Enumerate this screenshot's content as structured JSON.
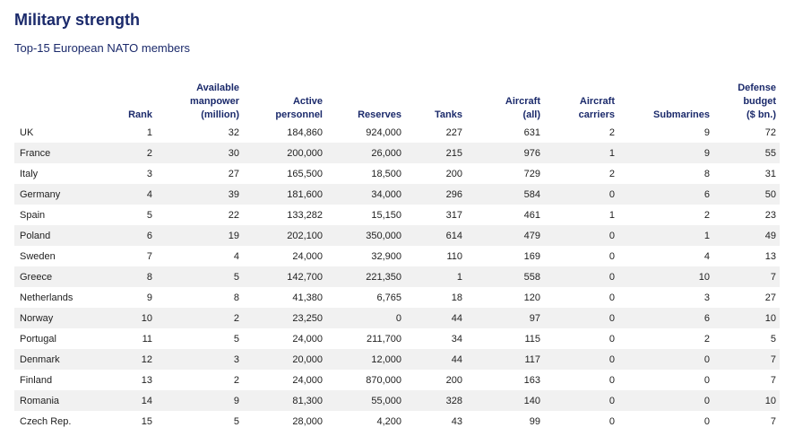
{
  "header": {
    "title": "Military strength",
    "subtitle": "Top-15 European NATO members"
  },
  "table": {
    "columns": [
      "",
      "Rank",
      "Available\nmanpower\n(million)",
      "Active\npersonnel",
      "Reserves",
      "Tanks",
      "Aircraft\n(all)",
      "Aircraft\ncarriers",
      "Submarines",
      "Defense\nbudget\n($ bn.)"
    ],
    "rows": [
      [
        "UK",
        "1",
        "32",
        "184,860",
        "924,000",
        "227",
        "631",
        "2",
        "9",
        "72"
      ],
      [
        "France",
        "2",
        "30",
        "200,000",
        "26,000",
        "215",
        "976",
        "1",
        "9",
        "55"
      ],
      [
        "Italy",
        "3",
        "27",
        "165,500",
        "18,500",
        "200",
        "729",
        "2",
        "8",
        "31"
      ],
      [
        "Germany",
        "4",
        "39",
        "181,600",
        "34,000",
        "296",
        "584",
        "0",
        "6",
        "50"
      ],
      [
        "Spain",
        "5",
        "22",
        "133,282",
        "15,150",
        "317",
        "461",
        "1",
        "2",
        "23"
      ],
      [
        "Poland",
        "6",
        "19",
        "202,100",
        "350,000",
        "614",
        "479",
        "0",
        "1",
        "49"
      ],
      [
        "Sweden",
        "7",
        "4",
        "24,000",
        "32,900",
        "110",
        "169",
        "0",
        "4",
        "13"
      ],
      [
        "Greece",
        "8",
        "5",
        "142,700",
        "221,350",
        "1",
        "558",
        "0",
        "10",
        "7"
      ],
      [
        "Netherlands",
        "9",
        "8",
        "41,380",
        "6,765",
        "18",
        "120",
        "0",
        "3",
        "27"
      ],
      [
        "Norway",
        "10",
        "2",
        "23,250",
        "0",
        "44",
        "97",
        "0",
        "6",
        "10"
      ],
      [
        "Portugal",
        "11",
        "5",
        "24,000",
        "211,700",
        "34",
        "115",
        "0",
        "2",
        "5"
      ],
      [
        "Denmark",
        "12",
        "3",
        "20,000",
        "12,000",
        "44",
        "117",
        "0",
        "0",
        "7"
      ],
      [
        "Finland",
        "13",
        "2",
        "24,000",
        "870,000",
        "200",
        "163",
        "0",
        "0",
        "7"
      ],
      [
        "Romania",
        "14",
        "9",
        "81,300",
        "55,000",
        "328",
        "140",
        "0",
        "0",
        "10"
      ],
      [
        "Czech Rep.",
        "15",
        "5",
        "28,000",
        "4,200",
        "43",
        "99",
        "0",
        "0",
        "7"
      ]
    ]
  }
}
